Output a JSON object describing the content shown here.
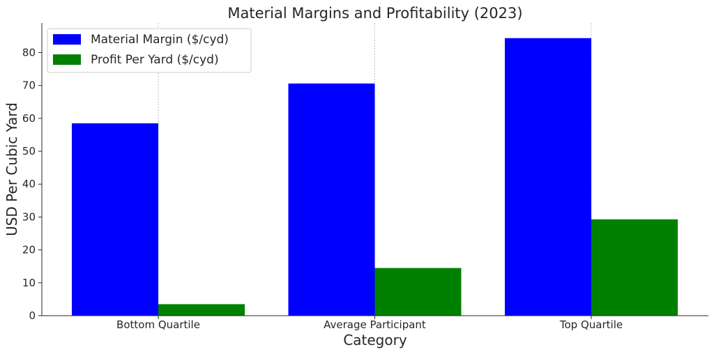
{
  "chart_data": {
    "type": "bar",
    "title": "Material Margins and Profitability (2023)",
    "xlabel": "Category",
    "ylabel": "USD Per Cubic Yard",
    "categories": [
      "Bottom Quartile",
      "Average Participant",
      "Top Quartile"
    ],
    "series": [
      {
        "name": "Material Margin ($/cyd)",
        "color": "#0000ff",
        "values": [
          58.5,
          70.6,
          84.4
        ]
      },
      {
        "name": "Profit Per Yard ($/cyd)",
        "color": "#008000",
        "values": [
          3.5,
          14.5,
          29.3
        ]
      }
    ],
    "ylim": [
      0,
      89
    ],
    "yticks": [
      0,
      10,
      20,
      30,
      40,
      50,
      60,
      70,
      80
    ],
    "grid": "x",
    "legend": "top-left"
  }
}
